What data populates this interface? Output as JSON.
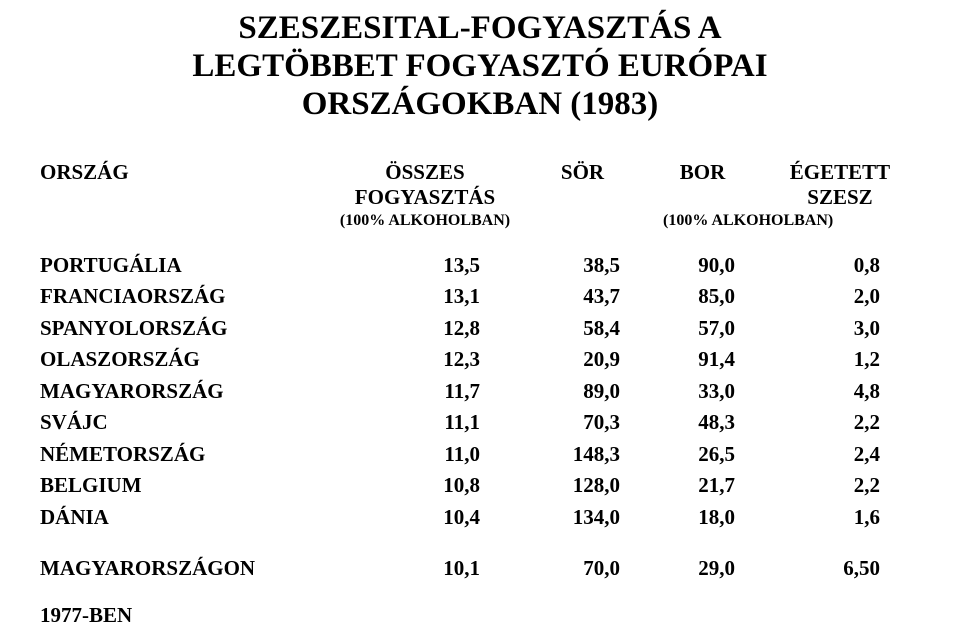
{
  "title_lines": [
    "SZESZESITAL-FOGYASZTÁS A",
    "LEGTÖBBET FOGYASZTÓ EURÓPAI",
    "ORSZÁGOKBAN (1983)"
  ],
  "headers": {
    "country": "ORSZÁG",
    "total": "ÖSSZES FOGYASZTÁS",
    "beer": "SÖR",
    "wine": "BOR",
    "spirit": "ÉGETETT SZESZ",
    "sub_total": "(100% ALKOHOLBAN)",
    "sub_alk2": "(100% ALKOHOLBAN)"
  },
  "rows": [
    {
      "country": "PORTUGÁLIA",
      "total": "13,5",
      "beer": "38,5",
      "wine": "90,0",
      "spirit": "0,8"
    },
    {
      "country": "FRANCIAORSZÁG",
      "total": "13,1",
      "beer": "43,7",
      "wine": "85,0",
      "spirit": "2,0"
    },
    {
      "country": "SPANYOLORSZÁG",
      "total": "12,8",
      "beer": "58,4",
      "wine": "57,0",
      "spirit": "3,0"
    },
    {
      "country": "OLASZORSZÁG",
      "total": "12,3",
      "beer": "20,9",
      "wine": "91,4",
      "spirit": "1,2"
    },
    {
      "country": "MAGYARORSZÁG",
      "total": "11,7",
      "beer": "89,0",
      "wine": "33,0",
      "spirit": "4,8"
    },
    {
      "country": "SVÁJC",
      "total": "11,1",
      "beer": "70,3",
      "wine": "48,3",
      "spirit": "2,2"
    },
    {
      "country": "NÉMETORSZÁG",
      "total": "11,0",
      "beer": "148,3",
      "wine": "26,5",
      "spirit": "2,4"
    },
    {
      "country": "BELGIUM",
      "total": "10,8",
      "beer": "128,0",
      "wine": "21,7",
      "spirit": "2,2"
    },
    {
      "country": "DÁNIA",
      "total": "10,4",
      "beer": "134,0",
      "wine": "18,0",
      "spirit": "1,6"
    }
  ],
  "summary": {
    "country": "MAGYARORSZÁGON",
    "total": "10,1",
    "beer": "70,0",
    "wine": "29,0",
    "spirit": "6,50"
  },
  "footer": "1977-BEN"
}
